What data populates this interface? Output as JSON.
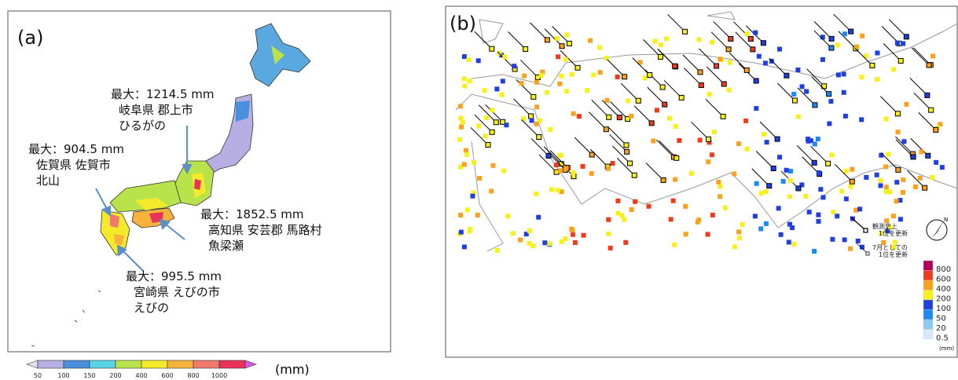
{
  "panel_a": {
    "label": "(a)",
    "annotations": [
      [
        "最大：1214.5 mm",
        "岐阜県 郡上市",
        "ひるがの"
      ],
      [
        "最大：904.5 mm",
        "佐賀県 佐賀市",
        "北山"
      ],
      [
        "最大：1852.5 mm",
        "高知県 安芸郡 馬路村",
        "魚梁瀬"
      ],
      [
        "最大：995.5 mm",
        "宮崎県 えびの市",
        "えびの"
      ]
    ],
    "colorbar": {
      "ticks": [
        50,
        100,
        150,
        200,
        400,
        600,
        800,
        1000
      ],
      "unit": "(mm)",
      "colors": [
        "#e4e0f4",
        "#b7aee3",
        "#4b8fdc",
        "#5ad2e8",
        "#b8e34a",
        "#f4ea2a",
        "#f6b33c",
        "#f07a6e",
        "#e8325a",
        "#e050e0"
      ]
    }
  },
  "panel_b": {
    "label": "(b)",
    "legend": [
      [
        "観測史上",
        "1位を更新"
      ],
      [
        "7月としての",
        "1位を更新"
      ]
    ],
    "compass": "N",
    "colorbar": {
      "ticks": [
        800,
        600,
        400,
        200,
        100,
        50,
        20,
        0.5
      ],
      "unit": "(mm)",
      "colors": [
        "#b3005a",
        "#ee3b1c",
        "#f8a21e",
        "#f7f01a",
        "#1f3fe0",
        "#1c8af0",
        "#8cc8f0",
        "#d8e8f8"
      ]
    }
  }
}
